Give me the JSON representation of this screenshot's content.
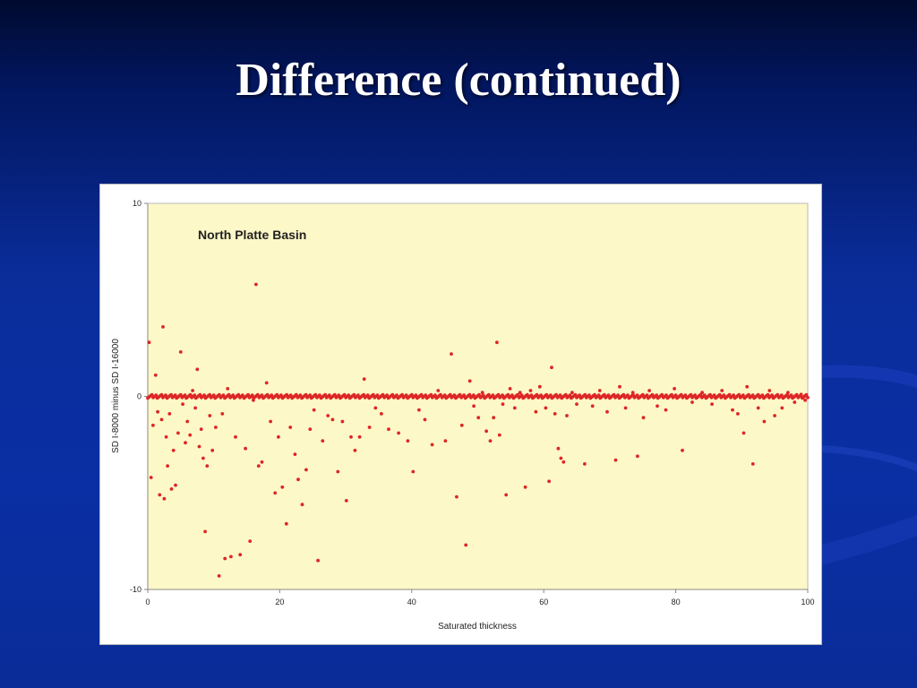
{
  "slide": {
    "title": "Difference (continued)"
  },
  "colors": {
    "background": "#0a2fa4",
    "plot_area": "#fdf8c7",
    "point": "#dd2626"
  },
  "chart_data": {
    "type": "scatter",
    "title": "North Platte Basin",
    "xlabel": "Saturated thickness",
    "ylabel": "SD I-8000 minus SD I-16000",
    "xlim": [
      0,
      100
    ],
    "ylim": [
      -10,
      10
    ],
    "xticks": [
      0,
      20,
      40,
      60,
      80,
      100
    ],
    "yticks": [
      -10,
      0,
      10
    ],
    "grid": false,
    "legend": "none",
    "series": [
      {
        "points": [
          [
            0.2,
            2.8
          ],
          [
            0.5,
            -4.2
          ],
          [
            0.8,
            -1.5
          ],
          [
            1.2,
            1.1
          ],
          [
            1.5,
            -0.8
          ],
          [
            1.8,
            -5.1
          ],
          [
            2.1,
            -1.2
          ],
          [
            2.3,
            3.6
          ],
          [
            2.5,
            -5.3
          ],
          [
            2.8,
            -2.1
          ],
          [
            3.0,
            -3.6
          ],
          [
            3.3,
            -0.9
          ],
          [
            3.6,
            -4.8
          ],
          [
            3.9,
            -2.8
          ],
          [
            4.2,
            -4.6
          ],
          [
            4.6,
            -1.9
          ],
          [
            5.0,
            2.3
          ],
          [
            5.3,
            -0.4
          ],
          [
            5.7,
            -2.4
          ],
          [
            6.0,
            -1.3
          ],
          [
            6.4,
            -2.0
          ],
          [
            6.8,
            0.3
          ],
          [
            7.2,
            -0.6
          ],
          [
            7.5,
            1.4
          ],
          [
            7.8,
            -2.6
          ],
          [
            8.1,
            -1.7
          ],
          [
            8.4,
            -3.2
          ],
          [
            8.7,
            -7.0
          ],
          [
            9.0,
            -3.6
          ],
          [
            9.4,
            -1.0
          ],
          [
            9.8,
            -2.8
          ],
          [
            10.3,
            -1.6
          ],
          [
            10.8,
            -9.3
          ],
          [
            11.3,
            -0.9
          ],
          [
            11.7,
            -8.4
          ],
          [
            12.1,
            0.4
          ],
          [
            12.6,
            -8.3
          ],
          [
            13.3,
            -2.1
          ],
          [
            14.0,
            -8.2
          ],
          [
            14.8,
            -2.7
          ],
          [
            15.5,
            -7.5
          ],
          [
            16.0,
            -0.2
          ],
          [
            16.4,
            5.8
          ],
          [
            16.8,
            -3.6
          ],
          [
            17.3,
            -3.4
          ],
          [
            18.0,
            0.7
          ],
          [
            18.6,
            -1.3
          ],
          [
            19.3,
            -5.0
          ],
          [
            19.8,
            -2.1
          ],
          [
            20.4,
            -4.7
          ],
          [
            21.0,
            -6.6
          ],
          [
            21.6,
            -1.6
          ],
          [
            22.3,
            -3.0
          ],
          [
            22.8,
            -4.3
          ],
          [
            23.4,
            -5.6
          ],
          [
            24.0,
            -3.8
          ],
          [
            24.6,
            -1.7
          ],
          [
            25.2,
            -0.7
          ],
          [
            25.8,
            -8.5
          ],
          [
            26.5,
            -2.3
          ],
          [
            27.3,
            -1.0
          ],
          [
            28.0,
            -1.2
          ],
          [
            28.8,
            -3.9
          ],
          [
            29.5,
            -1.3
          ],
          [
            30.1,
            -5.4
          ],
          [
            30.8,
            -2.1
          ],
          [
            31.4,
            -2.8
          ],
          [
            32.1,
            -2.1
          ],
          [
            32.8,
            0.9
          ],
          [
            33.6,
            -1.6
          ],
          [
            34.5,
            -0.6
          ],
          [
            35.4,
            -0.9
          ],
          [
            36.5,
            -1.7
          ],
          [
            38.0,
            -1.9
          ],
          [
            39.4,
            -2.3
          ],
          [
            40.2,
            -3.9
          ],
          [
            41.1,
            -0.7
          ],
          [
            42.0,
            -1.2
          ],
          [
            43.1,
            -2.5
          ],
          [
            44.0,
            0.3
          ],
          [
            45.1,
            -2.3
          ],
          [
            46.0,
            2.2
          ],
          [
            46.8,
            -5.2
          ],
          [
            47.6,
            -1.5
          ],
          [
            48.2,
            -7.7
          ],
          [
            48.8,
            0.8
          ],
          [
            49.4,
            -0.5
          ],
          [
            50.1,
            -1.1
          ],
          [
            50.7,
            0.2
          ],
          [
            51.3,
            -1.8
          ],
          [
            51.9,
            -2.3
          ],
          [
            52.4,
            -1.1
          ],
          [
            52.9,
            2.8
          ],
          [
            53.3,
            -2.0
          ],
          [
            53.8,
            -0.4
          ],
          [
            54.3,
            -5.1
          ],
          [
            54.9,
            0.4
          ],
          [
            55.6,
            -0.6
          ],
          [
            56.4,
            0.2
          ],
          [
            57.2,
            -4.7
          ],
          [
            58.0,
            0.3
          ],
          [
            58.8,
            -0.8
          ],
          [
            59.4,
            0.5
          ],
          [
            60.3,
            -0.6
          ],
          [
            60.8,
            -4.4
          ],
          [
            61.2,
            1.5
          ],
          [
            61.7,
            -0.9
          ],
          [
            62.2,
            -2.7
          ],
          [
            62.6,
            -3.2
          ],
          [
            63.0,
            -3.4
          ],
          [
            63.5,
            -1.0
          ],
          [
            64.3,
            0.2
          ],
          [
            65.0,
            -0.4
          ],
          [
            66.2,
            -3.5
          ],
          [
            67.4,
            -0.5
          ],
          [
            68.5,
            0.3
          ],
          [
            69.6,
            -0.8
          ],
          [
            70.9,
            -3.3
          ],
          [
            71.5,
            0.5
          ],
          [
            72.4,
            -0.6
          ],
          [
            73.5,
            0.2
          ],
          [
            74.2,
            -3.1
          ],
          [
            75.1,
            -1.1
          ],
          [
            76.0,
            0.3
          ],
          [
            77.2,
            -0.5
          ],
          [
            78.5,
            -0.7
          ],
          [
            79.8,
            0.4
          ],
          [
            81.0,
            -2.8
          ],
          [
            82.5,
            -0.3
          ],
          [
            84.0,
            0.2
          ],
          [
            85.5,
            -0.4
          ],
          [
            87.0,
            0.3
          ],
          [
            88.6,
            -0.7
          ],
          [
            89.4,
            -0.9
          ],
          [
            90.3,
            -1.9
          ],
          [
            90.8,
            0.5
          ],
          [
            91.7,
            -3.5
          ],
          [
            92.5,
            -0.6
          ],
          [
            93.4,
            -1.3
          ],
          [
            94.2,
            0.3
          ],
          [
            95.0,
            -1.0
          ],
          [
            96.1,
            -0.6
          ],
          [
            97.0,
            0.2
          ],
          [
            98.0,
            -0.3
          ],
          [
            99.0,
            0.1
          ],
          [
            99.6,
            -0.2
          ]
        ]
      }
    ]
  }
}
